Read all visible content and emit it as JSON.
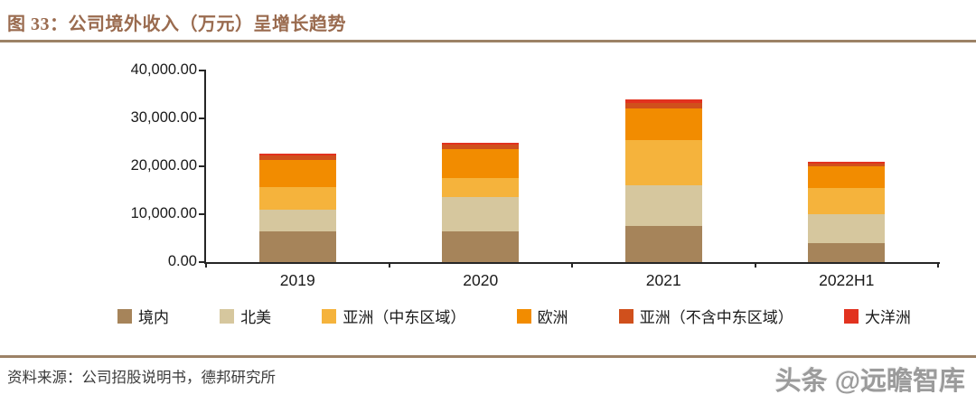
{
  "header": {
    "title": "图 33：公司境外收入（万元）呈增长趋势"
  },
  "footer": {
    "source": "资料来源：公司招股说明书，德邦研究所",
    "watermark": "头条 @远瞻智库"
  },
  "colors": {
    "title_text": "#9a6b4f",
    "rule": "#9c8266",
    "axis": "#262626"
  },
  "chart_data": {
    "type": "bar",
    "stacked": true,
    "title": "公司境外收入（万元）呈增长趋势",
    "unit": "万元",
    "categories": [
      "2019",
      "2020",
      "2021",
      "2022H1"
    ],
    "series": [
      {
        "name": "境内",
        "color": "#a6845a",
        "values": [
          6400,
          6400,
          7500,
          4000
        ]
      },
      {
        "name": "北美",
        "color": "#d6c79e",
        "values": [
          4600,
          7200,
          8500,
          6000
        ]
      },
      {
        "name": "亚洲（中东区域）",
        "color": "#f5b33c",
        "values": [
          4700,
          4000,
          9400,
          5500
        ]
      },
      {
        "name": "欧洲",
        "color": "#f28c00",
        "values": [
          5700,
          6000,
          6600,
          4500
        ]
      },
      {
        "name": "亚洲（不含中东区域）",
        "color": "#d0501c",
        "values": [
          800,
          900,
          1300,
          600
        ]
      },
      {
        "name": "大洋洲",
        "color": "#e2321f",
        "values": [
          400,
          400,
          600,
          350
        ]
      }
    ],
    "ylim": [
      0,
      40000
    ],
    "ytick_labels": [
      "0.00",
      "10,000.00",
      "20,000.00",
      "30,000.00",
      "40,000.00"
    ],
    "grid": false,
    "legend_position": "bottom"
  }
}
